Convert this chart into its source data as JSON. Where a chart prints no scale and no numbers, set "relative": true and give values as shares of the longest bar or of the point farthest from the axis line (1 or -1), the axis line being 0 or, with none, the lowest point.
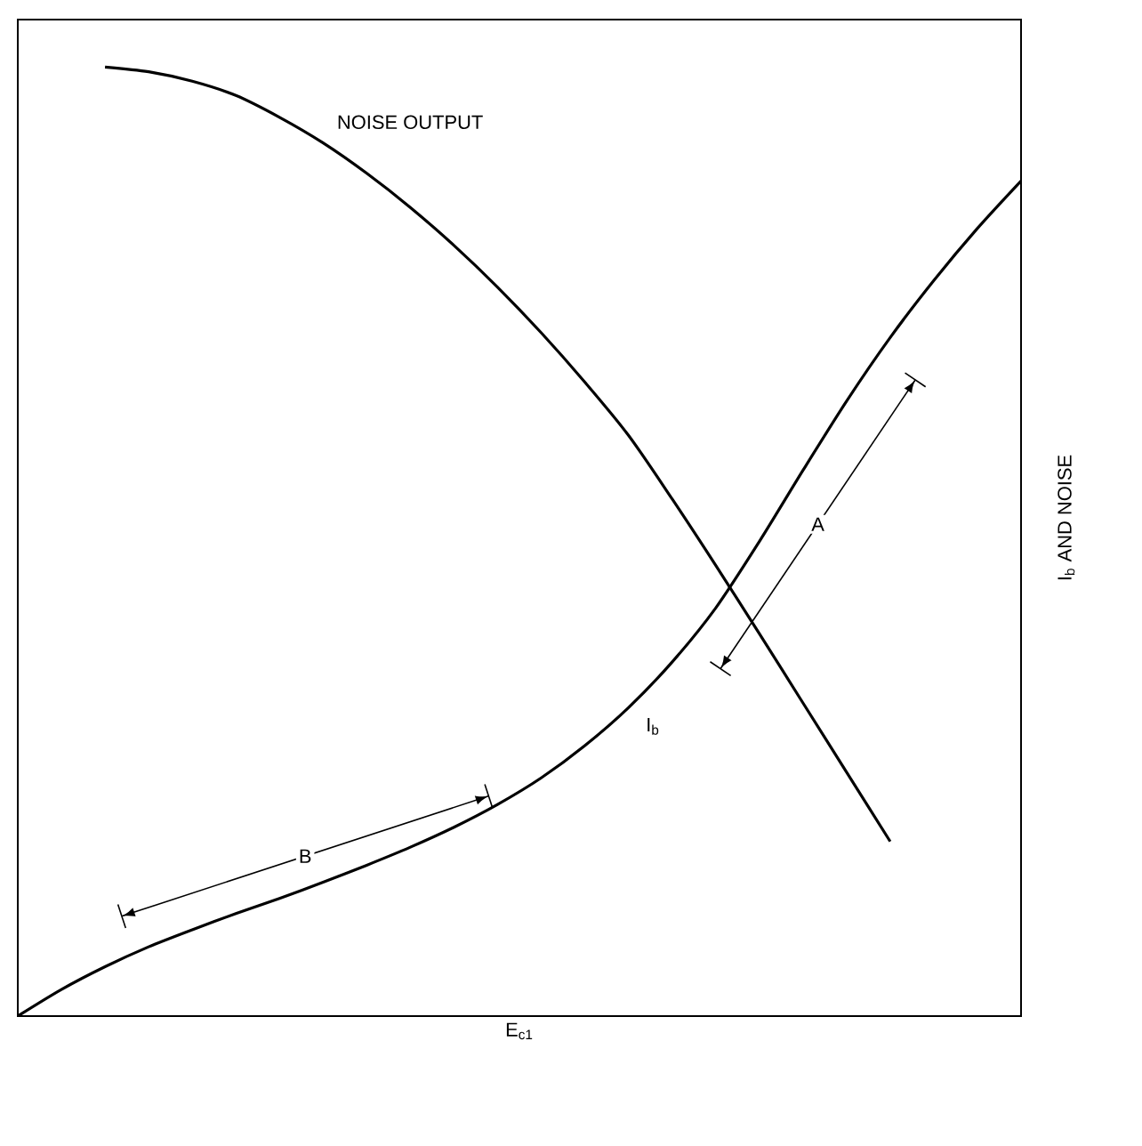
{
  "chart_data": {
    "type": "line",
    "relative": true,
    "xlabel": "E$_{c1}$",
    "ylabel": "I$_{b}$ AND NOISE",
    "categories": [
      null,
      null,
      null,
      null,
      null,
      null,
      null,
      null,
      null,
      null,
      null,
      null,
      null,
      null,
      null,
      null,
      null,
      null,
      null,
      null,
      null,
      null,
      null,
      null
    ],
    "series": [
      {
        "name": "NOISE OUTPUT",
        "color": "#000000",
        "values": [
          null,
          null,
          1.0,
          0.995,
          0.985,
          0.97,
          0.947,
          0.92,
          0.888,
          0.852,
          0.812,
          0.768,
          0.72,
          0.668,
          0.612,
          0.545,
          0.475,
          0.403,
          0.33,
          0.257,
          0.184,
          null,
          null,
          null
        ]
      },
      {
        "name": "I$_{b}$",
        "color": "#000000",
        "values": [
          0,
          0.028,
          0.052,
          0.073,
          0.091,
          0.108,
          0.124,
          0.141,
          0.159,
          0.178,
          0.199,
          0.223,
          0.251,
          0.285,
          0.325,
          0.373,
          0.43,
          0.5,
          0.575,
          0.648,
          0.715,
          0.775,
          0.83,
          0.88
        ]
      }
    ],
    "annotations": [
      "A",
      "B"
    ],
    "marker": "none",
    "line_style": "solid"
  }
}
